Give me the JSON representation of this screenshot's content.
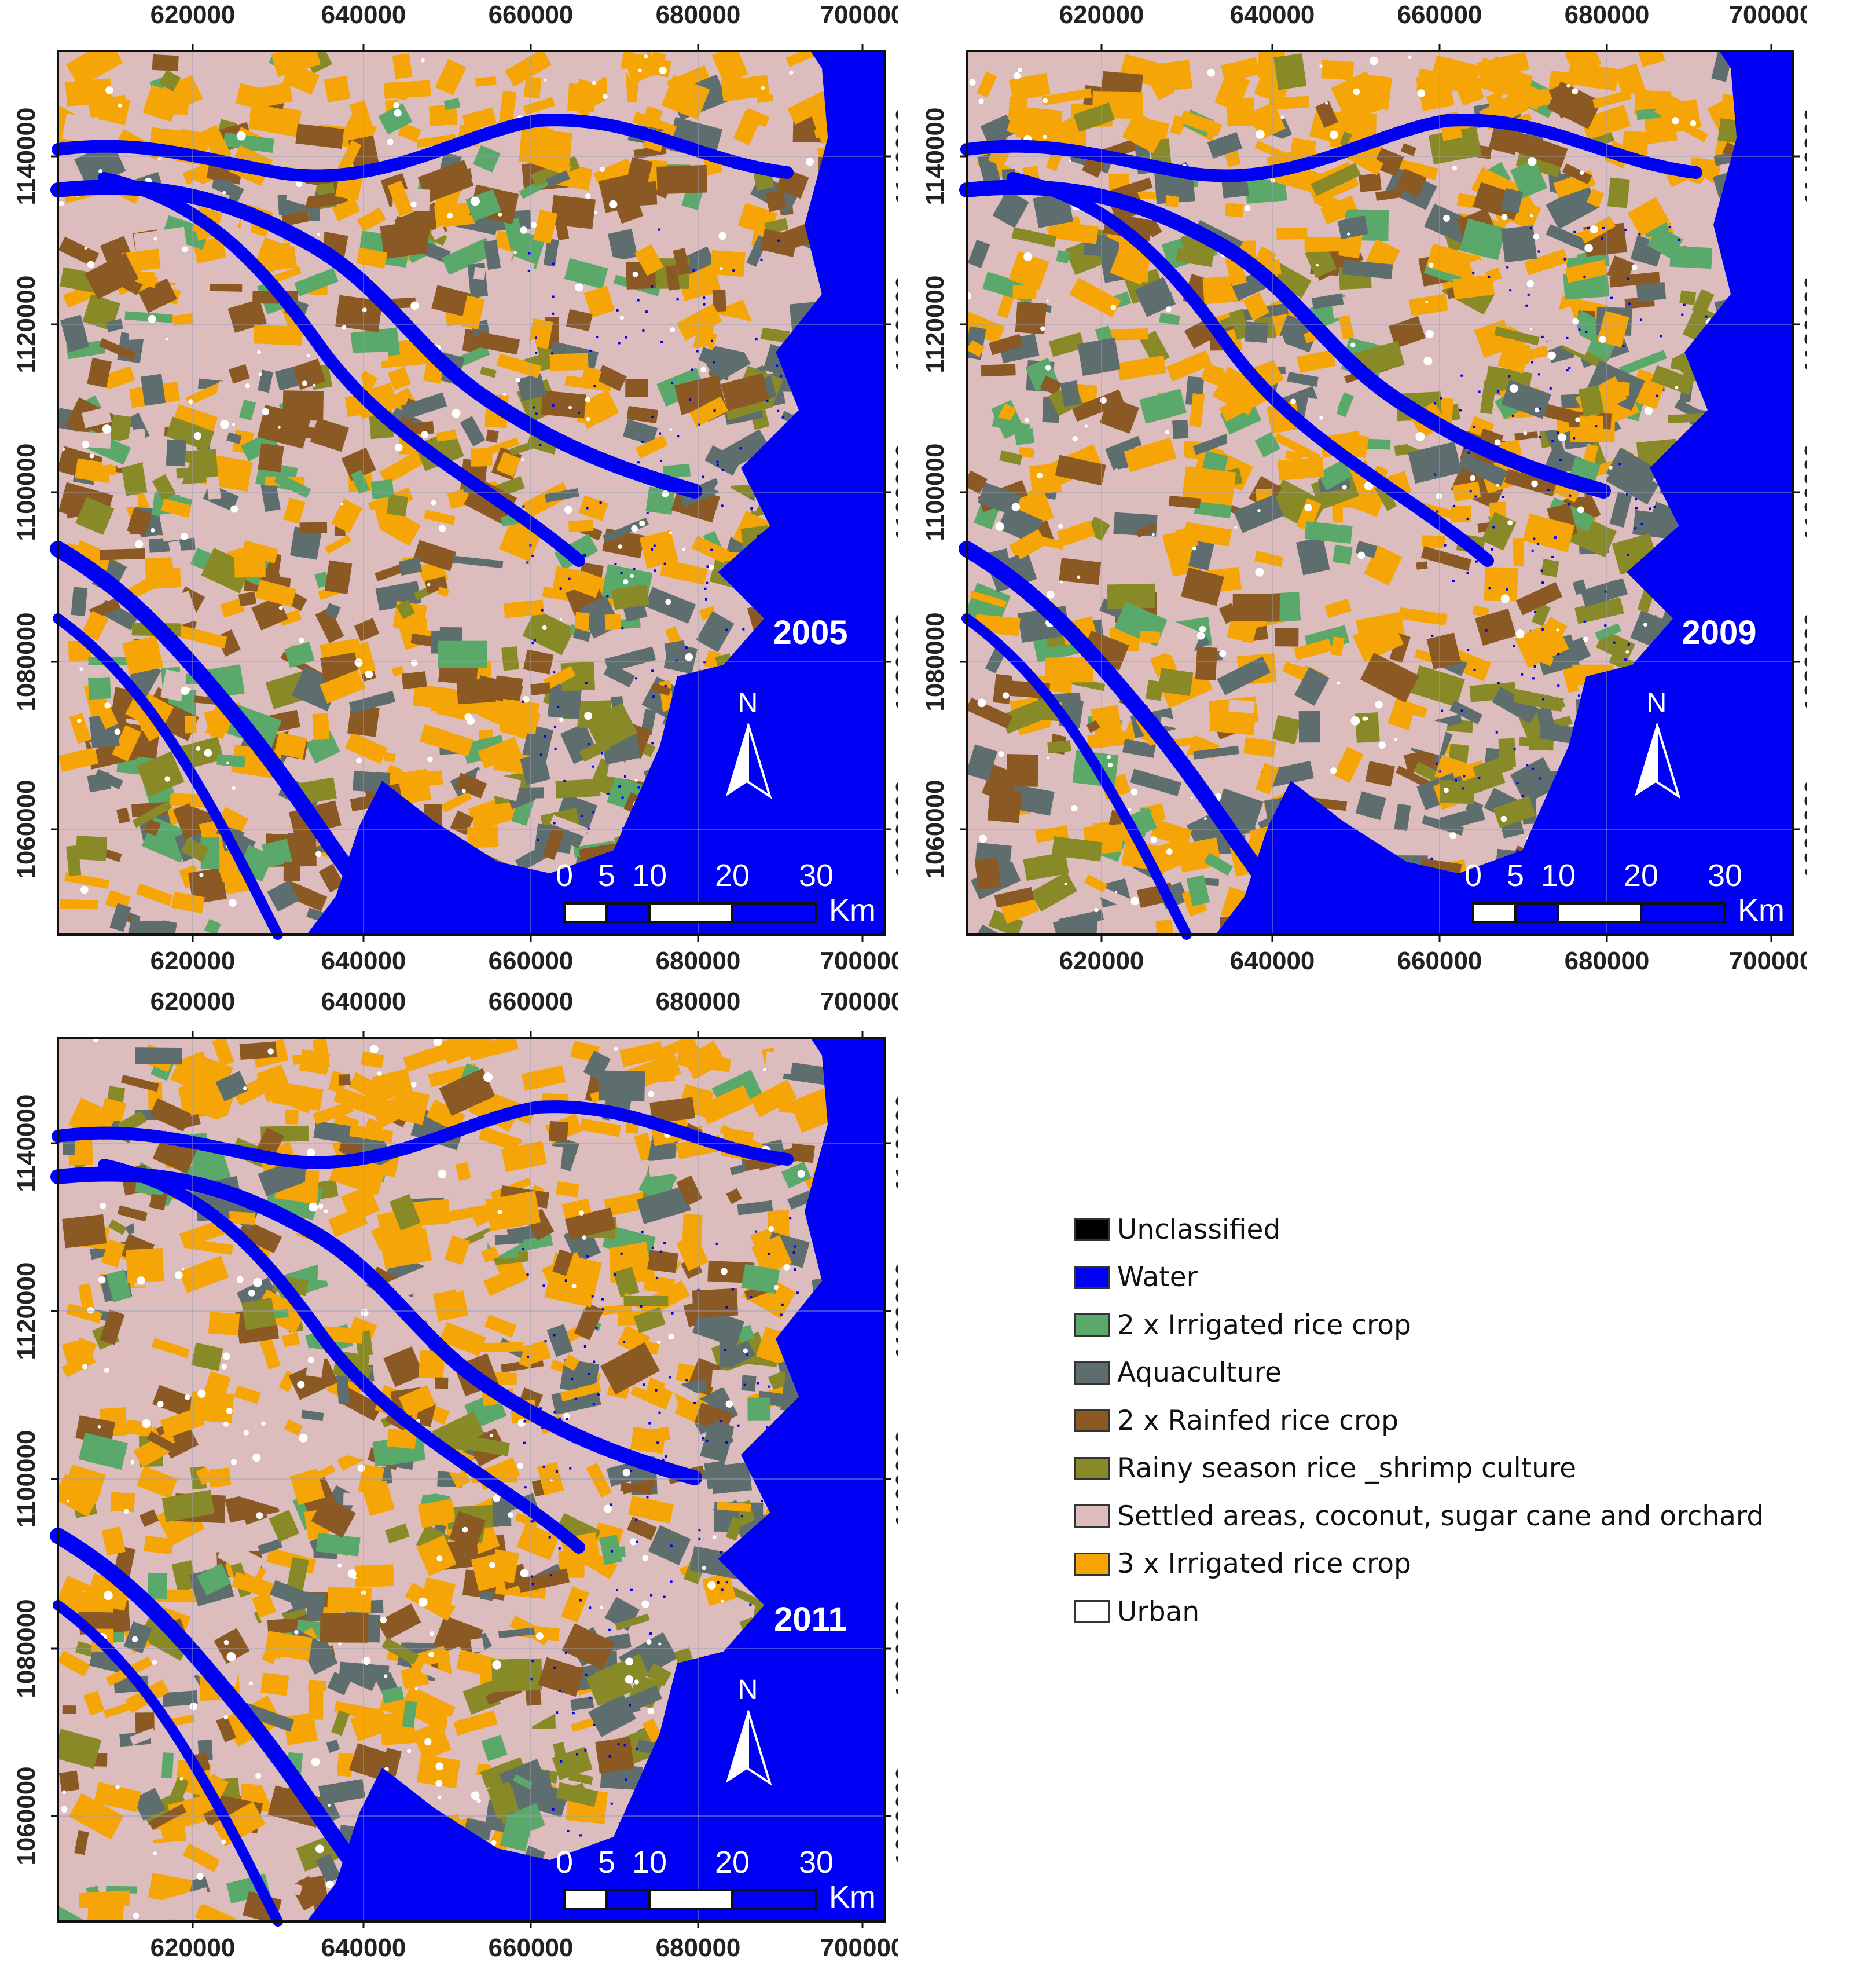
{
  "map": {
    "x_ticks": [
      "620000",
      "640000",
      "660000",
      "680000",
      "700000"
    ],
    "y_ticks": [
      "1140000",
      "1120000",
      "1100000",
      "1080000",
      "1060000"
    ],
    "scale_labels": [
      "0",
      "5",
      "10",
      "20",
      "30"
    ],
    "scale_unit": "Km",
    "north_label": "N",
    "panels": [
      {
        "year": "2005",
        "dominant": "mix-a"
      },
      {
        "year": "2009",
        "dominant": "mix-b"
      },
      {
        "year": "2011",
        "dominant": "mix-c"
      }
    ]
  },
  "colors": {
    "water": "#0000f5",
    "irrigated_2x": "#5aa86a",
    "aquaculture": "#5e6e6e",
    "rainfed_2x": "#8b5a24",
    "shrimp": "#888a28",
    "settled": "#dcbcbc",
    "irrigated_3x": "#f5a505",
    "urban": "#ffffff",
    "unclassified": "#000000"
  },
  "legend": {
    "items": [
      {
        "label": "Unclassified",
        "color": "#000000"
      },
      {
        "label": "Water",
        "color": "#0000f5"
      },
      {
        "label": "2 x Irrigated rice crop",
        "color": "#5aa86a"
      },
      {
        "label": "Aquaculture",
        "color": "#5e6e6e"
      },
      {
        "label": "2 x Rainfed rice crop",
        "color": "#8b5a24"
      },
      {
        "label": "Rainy season rice _shrimp culture",
        "color": "#888a28"
      },
      {
        "label": "Settled areas, coconut, sugar cane and orchard",
        "color": "#dcbcbc"
      },
      {
        "label": "3 x Irrigated rice crop",
        "color": "#f5a505"
      },
      {
        "label": "Urban",
        "color": "#ffffff"
      }
    ]
  }
}
